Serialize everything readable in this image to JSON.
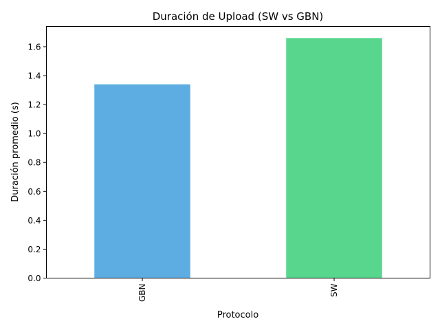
{
  "chart_data": {
    "type": "bar",
    "title": "Duración de Upload (SW vs GBN)",
    "xlabel": "Protocolo",
    "ylabel": "Duración promedio (s)",
    "categories": [
      "GBN",
      "SW"
    ],
    "values": [
      1.34,
      1.66
    ],
    "colors": [
      "#5DADE2",
      "#58D68D"
    ],
    "ylim": [
      0,
      1.74
    ],
    "yticks": [
      0.0,
      0.2,
      0.4,
      0.6,
      0.8,
      1.0,
      1.2,
      1.4,
      1.6
    ],
    "ytick_labels": [
      "0.0",
      "0.2",
      "0.4",
      "0.6",
      "0.8",
      "1.0",
      "1.2",
      "1.4",
      "1.6"
    ],
    "xtick_rotation": "vertical",
    "grid": false,
    "legend": "none"
  }
}
